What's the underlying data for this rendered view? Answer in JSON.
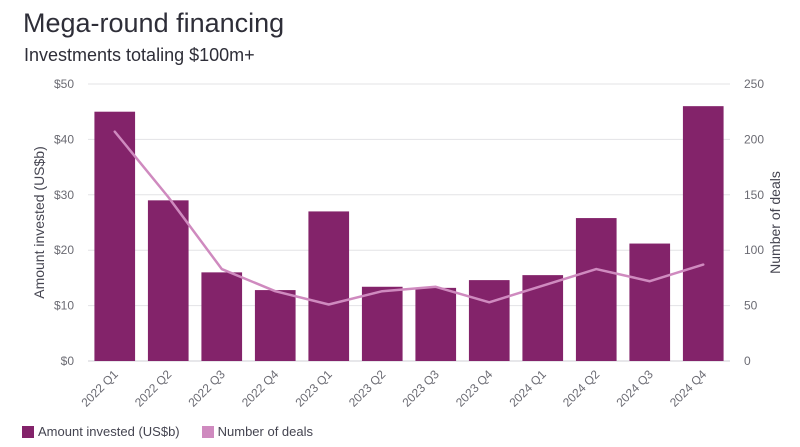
{
  "title": "Mega-round financing",
  "subtitle": "Investments totaling $100m+",
  "colors": {
    "bar": "#83236a",
    "line": "#cf8abf",
    "grid": "#e3e3e6",
    "axis_text": "#6b6b73"
  },
  "legend": {
    "bar_label": "Amount invested (US$b)",
    "line_label": "Number of deals"
  },
  "chart_data": {
    "type": "bar",
    "categories": [
      "2022 Q1",
      "2022 Q2",
      "2022 Q3",
      "2022 Q4",
      "2023 Q1",
      "2023 Q2",
      "2023 Q3",
      "2023 Q4",
      "2024 Q1",
      "2024 Q2",
      "2024 Q3",
      "2024 Q4"
    ],
    "series": [
      {
        "name": "Amount invested (US$b)",
        "type": "bar",
        "axis": "left",
        "values": [
          45,
          29,
          16,
          12.8,
          27,
          13.4,
          13.2,
          14.6,
          15.5,
          25.8,
          21.2,
          46
        ]
      },
      {
        "name": "Number of deals",
        "type": "line",
        "axis": "right",
        "values": [
          207,
          148,
          83,
          63,
          51,
          63,
          67,
          53,
          68,
          83,
          72,
          87
        ]
      }
    ],
    "ylabel": "Amount invested (US$b)",
    "y2label": "Number of deals",
    "ylim": [
      0,
      50
    ],
    "y2lim": [
      0,
      250
    ],
    "yticks": [
      "$0",
      "$10",
      "$20",
      "$30",
      "$40",
      "$50"
    ],
    "y2ticks": [
      "0",
      "50",
      "100",
      "150",
      "200",
      "250"
    ],
    "grid": true,
    "legend_position": "bottom-left"
  }
}
